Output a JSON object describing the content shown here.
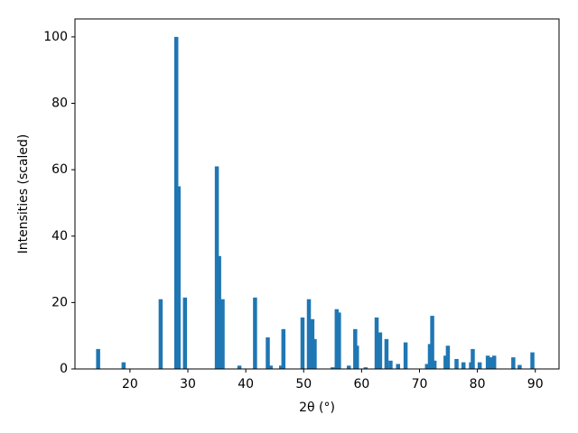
{
  "chart_data": {
    "type": "bar",
    "x_label": "2θ (°)",
    "y_label": "Intensities (scaled)",
    "x": [
      14.5,
      18.9,
      25.3,
      28.0,
      28.4,
      29.5,
      35.0,
      35.4,
      36.0,
      38.9,
      41.6,
      43.8,
      44.3,
      46.1,
      46.5,
      49.8,
      50.9,
      51.5,
      51.9,
      55.0,
      55.7,
      56.1,
      57.8,
      58.9,
      59.2,
      60.7,
      62.6,
      63.2,
      64.3,
      65.0,
      66.3,
      67.6,
      71.3,
      71.8,
      72.2,
      72.6,
      74.5,
      74.9,
      76.4,
      77.6,
      78.9,
      79.2,
      80.4,
      81.8,
      82.4,
      82.9,
      86.2,
      87.3,
      89.5
    ],
    "values": [
      6,
      2,
      21,
      100,
      55,
      21.5,
      61,
      34,
      21,
      1,
      21.5,
      9.5,
      1,
      1,
      12,
      15.5,
      21,
      15,
      9,
      0.5,
      18,
      17,
      1,
      12,
      7,
      0.5,
      15.5,
      11,
      9,
      2.5,
      1.5,
      8,
      1.5,
      7.5,
      16,
      2.5,
      4,
      7,
      3,
      2,
      2,
      6,
      2,
      4,
      3.5,
      4,
      3.5,
      1.2,
      5
    ],
    "color": "#1f77b4",
    "xlim": [
      10.5,
      94.1
    ],
    "xticks": [
      20,
      30,
      40,
      50,
      60,
      70,
      80,
      90
    ],
    "ylim": [
      0,
      105.4
    ],
    "yticks": [
      0,
      20,
      40,
      60,
      80,
      100
    ]
  }
}
